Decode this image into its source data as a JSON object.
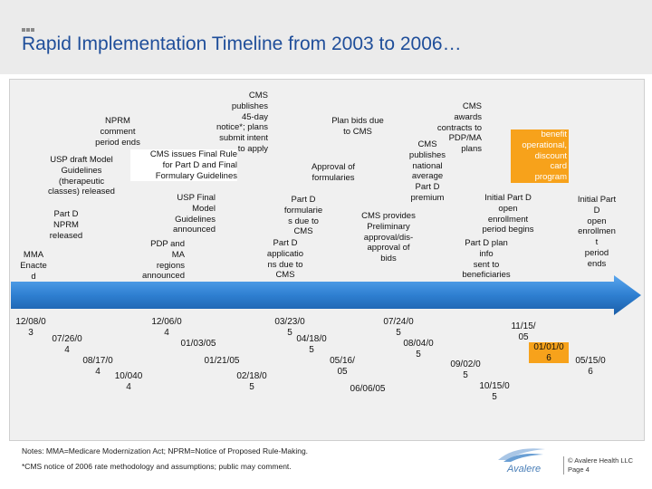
{
  "header": {
    "title": "Rapid Implementation Timeline from 2003 to 2006…"
  },
  "upper_labels": [
    {
      "id": "usp-draft",
      "text": "USP draft Model\nGuidelines\n(therapeutic\nclasses) released"
    },
    {
      "id": "nprm-comment",
      "text": "NPRM\ncomment\nperiod ends"
    },
    {
      "id": "partd-nprm",
      "text": "Part D\nNPRM\nreleased"
    },
    {
      "id": "mma-enacted",
      "text": "MMA\nEnacte\nd"
    },
    {
      "id": "cms-publishes-45",
      "text": "CMS\npublishes\n45-day\nnotice*; plans\nsubmit intent\nto apply"
    },
    {
      "id": "cms-final-rule",
      "text": "CMS issues Final Rule\nfor Part D and Final\nFormulary Guidelines"
    },
    {
      "id": "usp-final",
      "text": "USP Final\nModel\nGuidelines\nannounced"
    },
    {
      "id": "pdp-ma-regions",
      "text": "PDP and\nMA\nregions\nannounced"
    },
    {
      "id": "plan-bids",
      "text": "Plan bids due\nto CMS"
    },
    {
      "id": "approval-formularies",
      "text": "Approval of\nformularies"
    },
    {
      "id": "partd-formularies",
      "text": "Part D\nformularie\ns due to\nCMS"
    },
    {
      "id": "partd-applications",
      "text": "Part D\napplicatio\nns due to\nCMS"
    },
    {
      "id": "cms-awards",
      "text": "CMS\nawards\ncontracts to\nPDP/MA\nplans"
    },
    {
      "id": "cms-publishes-avg",
      "text": "CMS\npublishes\nnational\naverage\nPart D\npremium"
    },
    {
      "id": "cms-provides",
      "text": "CMS provides\nPreliminary\napproval/dis-\napproval of\nbids"
    },
    {
      "id": "benefit-operational",
      "text": "benefit\noperational,\ndiscount\ncard\nprogram"
    },
    {
      "id": "initial-enrollment-begins",
      "text": "Initial Part D\nopen\nenrollment\nperiod begins"
    },
    {
      "id": "partd-plan-info",
      "text": "Part D plan\ninfo\nsent to\nbeneficiaries"
    },
    {
      "id": "initial-enrollment-ends",
      "text": "Initial Part\nD\nopen\nenrollmen\nt\nperiod\nends"
    }
  ],
  "dates": [
    {
      "id": "d-120803",
      "text": "12/08/0\n3"
    },
    {
      "id": "d-072604",
      "text": "07/26/0\n4"
    },
    {
      "id": "d-081704",
      "text": "08/17/0\n4"
    },
    {
      "id": "d-100404",
      "text": "10/040\n4"
    },
    {
      "id": "d-120604",
      "text": "12/06/0\n4"
    },
    {
      "id": "d-010305",
      "text": "01/03/05"
    },
    {
      "id": "d-012105",
      "text": "01/21/05"
    },
    {
      "id": "d-021805",
      "text": "02/18/0\n5"
    },
    {
      "id": "d-032305",
      "text": "03/23/0\n5"
    },
    {
      "id": "d-041805",
      "text": "04/18/0\n5"
    },
    {
      "id": "d-051605",
      "text": "05/16/\n05"
    },
    {
      "id": "d-060605",
      "text": "06/06/05"
    },
    {
      "id": "d-072405",
      "text": "07/24/0\n5"
    },
    {
      "id": "d-080405",
      "text": "08/04/0\n5"
    },
    {
      "id": "d-090205",
      "text": "09/02/0\n5"
    },
    {
      "id": "d-101505",
      "text": "10/15/0\n5"
    },
    {
      "id": "d-111505",
      "text": "11/15/\n05"
    },
    {
      "id": "d-010106",
      "text": "01/01/0\n6"
    },
    {
      "id": "d-051506",
      "text": "05/15/0\n6"
    }
  ],
  "notes": {
    "line1": "Notes: MMA=Medicare Modernization Act; NPRM=Notice of Proposed Rule-Making.",
    "line2": "*CMS notice of 2006 rate methodology and assumptions; public may comment."
  },
  "footer": {
    "logo": "Avalere",
    "company": "© Avalere Health LLC",
    "page": "Page 4"
  },
  "colors": {
    "title": "#1f4e9a",
    "arrow": "#2e7fd1",
    "highlight": "#f7a21b"
  }
}
